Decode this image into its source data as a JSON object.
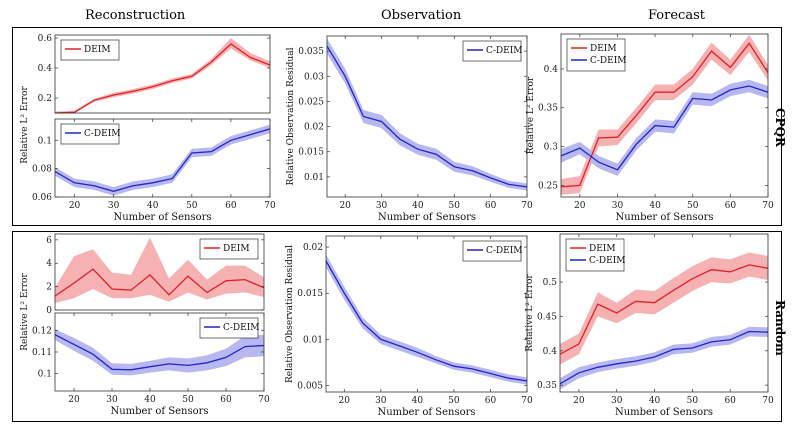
{
  "figure": {
    "column_titles": [
      "Reconstruction",
      "Observation",
      "Forecast"
    ],
    "row_labels": [
      "CPQR",
      "Random"
    ],
    "colors": {
      "deim": "#e21f26",
      "deim_band": "#f6b2b2",
      "cdeim": "#2323c8",
      "cdeim_band": "#b8b8f0"
    }
  },
  "chart_data": [
    {
      "id": "cpqr-recon-deim",
      "type": "line",
      "title": "",
      "xlabel": "",
      "ylabel": "Relative L² Error",
      "xlim": [
        15,
        70
      ],
      "ylim": [
        0.1,
        0.62
      ],
      "xticks": [],
      "yticks": [
        0.2,
        0.4,
        0.6
      ],
      "ytick_labels": [
        "0.2",
        "0.4",
        "0.6"
      ],
      "legend": "top-left",
      "series": [
        {
          "name": "DEIM",
          "color": "#e21f26",
          "band": "#f6b2b2",
          "x": [
            15,
            20,
            25,
            30,
            35,
            40,
            45,
            50,
            55,
            60,
            65,
            70
          ],
          "y": [
            0.1,
            0.105,
            0.185,
            0.22,
            0.245,
            0.275,
            0.315,
            0.345,
            0.44,
            0.56,
            0.47,
            0.42
          ],
          "lo": [
            0.1,
            0.1,
            0.175,
            0.205,
            0.23,
            0.26,
            0.3,
            0.33,
            0.42,
            0.53,
            0.45,
            0.4
          ],
          "hi": [
            0.11,
            0.115,
            0.195,
            0.235,
            0.26,
            0.29,
            0.33,
            0.36,
            0.46,
            0.6,
            0.5,
            0.445
          ]
        }
      ]
    },
    {
      "id": "cpqr-recon-cdeim",
      "type": "line",
      "title": "",
      "xlabel": "Number of Sensors",
      "ylabel": "",
      "xlim": [
        15,
        70
      ],
      "ylim": [
        0.06,
        0.115
      ],
      "xticks": [
        20,
        30,
        40,
        50,
        60,
        70
      ],
      "yticks": [
        0.06,
        0.08,
        0.1
      ],
      "ytick_labels": [
        "0.06",
        "0.08",
        "0.1"
      ],
      "legend": "top-left",
      "series": [
        {
          "name": "C-DEIM",
          "color": "#2323c8",
          "band": "#b8b8f0",
          "x": [
            15,
            20,
            25,
            30,
            35,
            40,
            45,
            50,
            55,
            60,
            65,
            70
          ],
          "y": [
            0.078,
            0.07,
            0.068,
            0.064,
            0.068,
            0.07,
            0.073,
            0.091,
            0.092,
            0.1,
            0.104,
            0.108
          ],
          "lo": [
            0.075,
            0.067,
            0.065,
            0.061,
            0.065,
            0.067,
            0.07,
            0.088,
            0.089,
            0.097,
            0.101,
            0.105
          ],
          "hi": [
            0.081,
            0.073,
            0.071,
            0.067,
            0.071,
            0.073,
            0.076,
            0.094,
            0.095,
            0.103,
            0.107,
            0.111
          ]
        }
      ]
    },
    {
      "id": "cpqr-obs",
      "type": "line",
      "title": "",
      "xlabel": "Number of Sensors",
      "ylabel": "Relative Observation Residual",
      "xlim": [
        15,
        70
      ],
      "ylim": [
        0.006,
        0.038
      ],
      "xticks": [
        20,
        30,
        40,
        50,
        60,
        70
      ],
      "yticks": [
        0.01,
        0.015,
        0.02,
        0.025,
        0.03,
        0.035
      ],
      "ytick_labels": [
        "0.01",
        "0.015",
        "0.02",
        "0.025",
        "0.03",
        "0.035"
      ],
      "legend": "top-right",
      "series": [
        {
          "name": "C-DEIM",
          "color": "#2323c8",
          "band": "#b8b8f0",
          "x": [
            15,
            20,
            25,
            30,
            35,
            40,
            45,
            50,
            55,
            60,
            65,
            70
          ],
          "y": [
            0.036,
            0.03,
            0.022,
            0.021,
            0.0175,
            0.0155,
            0.0145,
            0.012,
            0.0112,
            0.0098,
            0.0085,
            0.008
          ],
          "lo": [
            0.0345,
            0.0285,
            0.0207,
            0.0197,
            0.0163,
            0.0144,
            0.0134,
            0.011,
            0.0103,
            0.009,
            0.0078,
            0.0073
          ],
          "hi": [
            0.0375,
            0.0315,
            0.0233,
            0.0223,
            0.0187,
            0.0166,
            0.0156,
            0.013,
            0.0121,
            0.0106,
            0.0092,
            0.0087
          ]
        }
      ]
    },
    {
      "id": "cpqr-forecast",
      "type": "line",
      "title": "",
      "xlabel": "Number of Sensors",
      "ylabel": "Relative L² Error",
      "xlim": [
        15,
        70
      ],
      "ylim": [
        0.235,
        0.445
      ],
      "xticks": [
        20,
        30,
        40,
        50,
        60,
        70
      ],
      "yticks": [
        0.25,
        0.3,
        0.35,
        0.4
      ],
      "ytick_labels": [
        "0.25",
        "0.3",
        "0.35",
        "0.4"
      ],
      "legend": "top-left",
      "series": [
        {
          "name": "DEIM",
          "color": "#e21f26",
          "band": "#f6b2b2",
          "x": [
            15,
            20,
            25,
            30,
            35,
            40,
            45,
            50,
            55,
            60,
            65,
            70
          ],
          "y": [
            0.248,
            0.25,
            0.311,
            0.312,
            0.34,
            0.37,
            0.37,
            0.39,
            0.423,
            0.402,
            0.433,
            0.395
          ],
          "lo": [
            0.238,
            0.24,
            0.3,
            0.302,
            0.33,
            0.36,
            0.36,
            0.38,
            0.412,
            0.392,
            0.422,
            0.385
          ],
          "hi": [
            0.258,
            0.262,
            0.322,
            0.322,
            0.35,
            0.38,
            0.38,
            0.4,
            0.434,
            0.412,
            0.444,
            0.405
          ]
        },
        {
          "name": "C-DEIM",
          "color": "#2323c8",
          "band": "#b8b8f0",
          "x": [
            15,
            20,
            25,
            30,
            35,
            40,
            45,
            50,
            55,
            60,
            65,
            70
          ],
          "y": [
            0.288,
            0.298,
            0.28,
            0.27,
            0.303,
            0.327,
            0.325,
            0.362,
            0.36,
            0.373,
            0.378,
            0.37
          ],
          "lo": [
            0.279,
            0.29,
            0.272,
            0.262,
            0.295,
            0.319,
            0.317,
            0.354,
            0.352,
            0.365,
            0.37,
            0.362
          ],
          "hi": [
            0.297,
            0.306,
            0.288,
            0.278,
            0.311,
            0.335,
            0.333,
            0.37,
            0.368,
            0.381,
            0.386,
            0.378
          ]
        }
      ]
    },
    {
      "id": "random-recon-deim",
      "type": "line",
      "title": "",
      "xlabel": "",
      "ylabel": "Relative L² Error",
      "xlim": [
        15,
        70
      ],
      "ylim": [
        0,
        6.5
      ],
      "xticks": [],
      "yticks": [
        0,
        2,
        4,
        6
      ],
      "ytick_labels": [
        "0",
        "2",
        "4",
        "6"
      ],
      "legend": "top-right",
      "series": [
        {
          "name": "DEIM",
          "color": "#e21f26",
          "band": "#f6b2b2",
          "x": [
            15,
            20,
            25,
            30,
            35,
            40,
            45,
            50,
            55,
            60,
            65,
            70
          ],
          "y": [
            1.2,
            2.3,
            3.5,
            1.8,
            1.7,
            3.0,
            1.3,
            2.9,
            1.5,
            2.5,
            2.6,
            1.9
          ],
          "lo": [
            0.6,
            1.0,
            1.8,
            1.0,
            1.0,
            1.3,
            0.7,
            1.5,
            0.9,
            1.4,
            1.5,
            1.1
          ],
          "hi": [
            1.9,
            4.6,
            5.2,
            3.2,
            3.0,
            6.2,
            2.7,
            4.3,
            2.6,
            3.8,
            3.8,
            2.8
          ]
        }
      ]
    },
    {
      "id": "random-recon-cdeim",
      "type": "line",
      "title": "",
      "xlabel": "Number of Sensors",
      "ylabel": "",
      "xlim": [
        15,
        70
      ],
      "ylim": [
        0.092,
        0.128
      ],
      "xticks": [
        20,
        30,
        40,
        50,
        60,
        70
      ],
      "yticks": [
        0.1,
        0.11,
        0.12
      ],
      "ytick_labels": [
        "0.1",
        "0.11",
        "0.12"
      ],
      "legend": "top-right",
      "series": [
        {
          "name": "C-DEIM",
          "color": "#2323c8",
          "band": "#b8b8f0",
          "x": [
            15,
            20,
            25,
            30,
            35,
            40,
            45,
            50,
            55,
            60,
            65,
            70
          ],
          "y": [
            0.118,
            0.1135,
            0.109,
            0.102,
            0.1018,
            0.1032,
            0.1045,
            0.1038,
            0.105,
            0.1075,
            0.1125,
            0.113
          ],
          "lo": [
            0.1155,
            0.1105,
            0.106,
            0.0995,
            0.0992,
            0.1005,
            0.1015,
            0.1005,
            0.1015,
            0.1035,
            0.1075,
            0.108
          ],
          "hi": [
            0.1205,
            0.1165,
            0.112,
            0.1048,
            0.1045,
            0.106,
            0.1075,
            0.107,
            0.1085,
            0.1115,
            0.1175,
            0.118
          ]
        }
      ]
    },
    {
      "id": "random-obs",
      "type": "line",
      "title": "",
      "xlabel": "Number of Sensors",
      "ylabel": "Relative Observation Residual",
      "xlim": [
        15,
        70
      ],
      "ylim": [
        0.0043,
        0.0212
      ],
      "xticks": [
        20,
        30,
        40,
        50,
        60,
        70
      ],
      "yticks": [
        0.005,
        0.01,
        0.015,
        0.02
      ],
      "ytick_labels": [
        "0.005",
        "0.01",
        "0.015",
        "0.02"
      ],
      "legend": "top-right",
      "series": [
        {
          "name": "C-DEIM",
          "color": "#2323c8",
          "band": "#b8b8f0",
          "x": [
            15,
            20,
            25,
            30,
            35,
            40,
            45,
            50,
            55,
            60,
            65,
            70
          ],
          "y": [
            0.0185,
            0.015,
            0.0118,
            0.01,
            0.0093,
            0.0086,
            0.0078,
            0.0071,
            0.0068,
            0.0063,
            0.0058,
            0.0055
          ],
          "lo": [
            0.0178,
            0.0143,
            0.0112,
            0.0095,
            0.0088,
            0.0081,
            0.0074,
            0.0067,
            0.0064,
            0.0059,
            0.0054,
            0.0051
          ],
          "hi": [
            0.0192,
            0.0157,
            0.0124,
            0.0105,
            0.0098,
            0.0091,
            0.0082,
            0.0075,
            0.0072,
            0.0067,
            0.0062,
            0.0059
          ]
        }
      ]
    },
    {
      "id": "random-forecast",
      "type": "line",
      "title": "",
      "xlabel": "Number of Sensors",
      "ylabel": "Relative L² Error",
      "xlim": [
        15,
        70
      ],
      "ylim": [
        0.34,
        0.57
      ],
      "xticks": [
        20,
        30,
        40,
        50,
        60,
        70
      ],
      "yticks": [
        0.35,
        0.4,
        0.45,
        0.5
      ],
      "ytick_labels": [
        "0.35",
        "0.4",
        "0.45",
        "0.5"
      ],
      "legend": "top-left",
      "series": [
        {
          "name": "DEIM",
          "color": "#e21f26",
          "band": "#f6b2b2",
          "x": [
            15,
            20,
            25,
            30,
            35,
            40,
            45,
            50,
            55,
            60,
            65,
            70
          ],
          "y": [
            0.395,
            0.41,
            0.468,
            0.455,
            0.472,
            0.47,
            0.488,
            0.505,
            0.518,
            0.515,
            0.525,
            0.52
          ],
          "lo": [
            0.38,
            0.395,
            0.45,
            0.44,
            0.455,
            0.453,
            0.47,
            0.487,
            0.5,
            0.498,
            0.508,
            0.503
          ],
          "hi": [
            0.41,
            0.425,
            0.485,
            0.47,
            0.489,
            0.487,
            0.506,
            0.523,
            0.536,
            0.533,
            0.543,
            0.538
          ]
        },
        {
          "name": "C-DEIM",
          "color": "#2323c8",
          "band": "#b8b8f0",
          "x": [
            15,
            20,
            25,
            30,
            35,
            40,
            45,
            50,
            55,
            60,
            65,
            70
          ],
          "y": [
            0.352,
            0.368,
            0.376,
            0.381,
            0.385,
            0.391,
            0.402,
            0.404,
            0.413,
            0.416,
            0.428,
            0.427
          ],
          "lo": [
            0.344,
            0.36,
            0.369,
            0.374,
            0.378,
            0.384,
            0.395,
            0.397,
            0.406,
            0.409,
            0.421,
            0.42
          ],
          "hi": [
            0.36,
            0.376,
            0.383,
            0.388,
            0.392,
            0.398,
            0.409,
            0.411,
            0.42,
            0.423,
            0.435,
            0.434
          ]
        }
      ]
    }
  ]
}
